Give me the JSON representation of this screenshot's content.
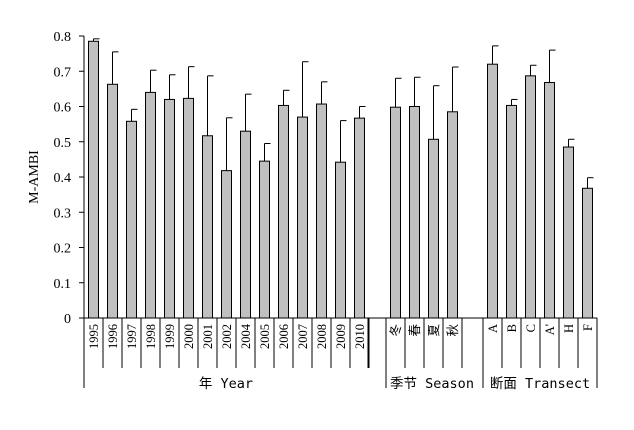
{
  "chart_data": {
    "type": "bar",
    "ylabel": "M-AMBI",
    "ylim": [
      0,
      0.8
    ],
    "yticks": [
      "0",
      "0.1",
      "0.2",
      "0.3",
      "0.4",
      "0.5",
      "0.6",
      "0.7",
      "0.8"
    ],
    "error_bars": "upper",
    "bar_color": "#c0c0c0",
    "groups": [
      {
        "label": "年 Year",
        "categories": [
          "1995",
          "1996",
          "1997",
          "1998",
          "1999",
          "2000",
          "2001",
          "2002",
          "2004",
          "2005",
          "2006",
          "2007",
          "2008",
          "2009",
          "2010"
        ],
        "values": [
          0.785,
          0.663,
          0.558,
          0.64,
          0.62,
          0.623,
          0.517,
          0.418,
          0.53,
          0.445,
          0.603,
          0.57,
          0.607,
          0.442,
          0.567
        ],
        "errors": [
          0.007,
          0.092,
          0.034,
          0.063,
          0.07,
          0.09,
          0.17,
          0.15,
          0.105,
          0.05,
          0.043,
          0.157,
          0.063,
          0.118,
          0.033
        ]
      },
      {
        "label": "季节 Season",
        "categories": [
          "冬",
          "春",
          "夏",
          "秋"
        ],
        "values": [
          0.598,
          0.6,
          0.507,
          0.585
        ],
        "errors": [
          0.082,
          0.083,
          0.152,
          0.127
        ]
      },
      {
        "label": "断面 Transect",
        "categories": [
          "A",
          "B",
          "C",
          "A'",
          "H",
          "F"
        ],
        "values": [
          0.72,
          0.603,
          0.687,
          0.668,
          0.485,
          0.368
        ],
        "errors": [
          0.052,
          0.017,
          0.03,
          0.092,
          0.022,
          0.03
        ]
      }
    ]
  }
}
